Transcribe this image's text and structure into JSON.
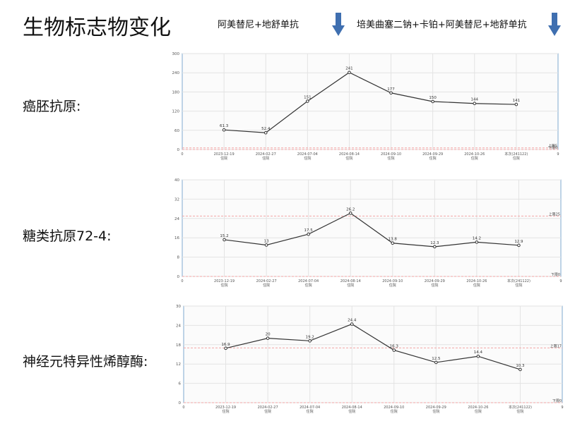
{
  "page": {
    "title": "生物标志物变化",
    "treatments": [
      "阿美替尼+地舒单抗",
      "培美曲塞二钠+卡铂+阿美替尼+地舒单抗"
    ],
    "row_labels": [
      "癌胚抗原:",
      "糖类抗原72-4:",
      "神经元特异性烯醇酶:"
    ]
  },
  "colors": {
    "line": "#333333",
    "frame": "#7fa9cf",
    "grid": "#e3e3e3",
    "ref_line": "#f2a6a6",
    "arrow": "#3f6fb0"
  },
  "chart_data": [
    {
      "type": "line",
      "categories": [
        "2023-12-19",
        "2024-02-27",
        "2024-07-04",
        "2024-08-14",
        "2024-09-10",
        "2024-09-29",
        "2024-10-26",
        "本次(241122)"
      ],
      "sublabels": [
        "住院",
        "住院",
        "住院",
        "住院",
        "住院",
        "住院",
        "住院",
        "住院"
      ],
      "values": [
        61.3,
        52.4,
        151,
        241,
        177,
        150,
        144,
        141
      ],
      "value_labels": [
        "61.3",
        "52.4",
        "151",
        "241",
        "177",
        "150",
        "144",
        "141"
      ],
      "ylim": [
        0,
        300
      ],
      "yticks": [
        "0",
        "60",
        "120",
        "180",
        "240",
        "300"
      ],
      "x_edge_labels": [
        "0",
        "9"
      ],
      "ref_lines": [
        {
          "label": "上限5",
          "value": 5
        },
        {
          "label": "下限0",
          "value": 0
        }
      ],
      "grid": true
    },
    {
      "type": "line",
      "categories": [
        "2023-12-19",
        "2024-02-27",
        "2024-07-04",
        "2024-08-14",
        "2024-09-10",
        "2024-09-29",
        "2024-10-26",
        "本次(241122)"
      ],
      "sublabels": [
        "住院",
        "住院",
        "住院",
        "住院",
        "住院",
        "住院",
        "住院",
        "住院"
      ],
      "values": [
        15.2,
        13,
        17.5,
        26.2,
        13.8,
        12.3,
        14.2,
        12.9
      ],
      "value_labels": [
        "15.2",
        "13",
        "17.5",
        "26.2",
        "13.8",
        "12.3",
        "14.2",
        "12.9"
      ],
      "ylim": [
        0,
        40
      ],
      "yticks": [
        "0",
        "8",
        "16",
        "24",
        "32",
        "40"
      ],
      "x_edge_labels": [
        "0",
        "9"
      ],
      "ref_lines": [
        {
          "label": "上限25",
          "value": 25
        },
        {
          "label": "下限0",
          "value": 0
        }
      ],
      "grid": true
    },
    {
      "type": "line",
      "categories": [
        "2023-12-19",
        "2024-02-27",
        "2024-07-04",
        "2024-08-14",
        "2024-09-10",
        "2024-09-29",
        "2024-10-26",
        "本次(241122)"
      ],
      "sublabels": [
        "住院",
        "住院",
        "住院",
        "住院",
        "住院",
        "住院",
        "住院",
        "住院"
      ],
      "values": [
        16.9,
        20,
        19.2,
        24.4,
        16.3,
        12.5,
        14.4,
        10.3
      ],
      "value_labels": [
        "16.9",
        "20",
        "19.2",
        "24.4",
        "16.3",
        "12.5",
        "14.4",
        "10.3"
      ],
      "ylim": [
        0,
        30
      ],
      "yticks": [
        "0",
        "6",
        "12",
        "18",
        "24",
        "30"
      ],
      "x_edge_labels": [
        "0",
        "9"
      ],
      "ref_lines": [
        {
          "label": "上限17",
          "value": 17
        },
        {
          "label": "下限0",
          "value": 0
        }
      ],
      "grid": true
    }
  ]
}
